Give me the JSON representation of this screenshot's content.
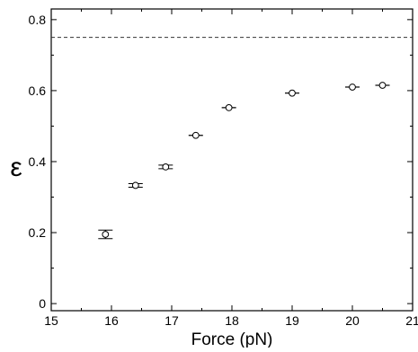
{
  "chart_data": {
    "type": "scatter",
    "title": "",
    "xlabel": "Force (pN)",
    "ylabel": "ε",
    "xlim": [
      15,
      21
    ],
    "ylim": [
      -0.02,
      0.83
    ],
    "x_ticks": [
      15,
      16,
      17,
      18,
      19,
      20,
      21
    ],
    "x_tick_labels": [
      "15",
      "16",
      "17",
      "18",
      "19",
      "20",
      "21"
    ],
    "y_ticks": [
      0,
      0.2,
      0.4,
      0.6,
      0.8
    ],
    "y_tick_labels": [
      "0",
      "0.2",
      "0.4",
      "0.6",
      "0.8"
    ],
    "grid": false,
    "reference_line": {
      "y": 0.75,
      "style": "dashed"
    },
    "series": [
      {
        "marker": "open-circle",
        "points": [
          {
            "x": 15.9,
            "y": 0.195,
            "err": 0.012
          },
          {
            "x": 16.4,
            "y": 0.333,
            "err": 0.005
          },
          {
            "x": 16.9,
            "y": 0.385,
            "err": 0.005
          },
          {
            "x": 17.4,
            "y": 0.474,
            "err": 0.0
          },
          {
            "x": 17.95,
            "y": 0.552,
            "err": 0.0
          },
          {
            "x": 19.0,
            "y": 0.593,
            "err": 0.0
          },
          {
            "x": 20.0,
            "y": 0.61,
            "err": 0.0
          },
          {
            "x": 20.5,
            "y": 0.615,
            "err": 0.0
          }
        ]
      }
    ],
    "colors": {
      "axis": "#000000",
      "marker": "#000000",
      "reference_line": "#333333"
    }
  }
}
